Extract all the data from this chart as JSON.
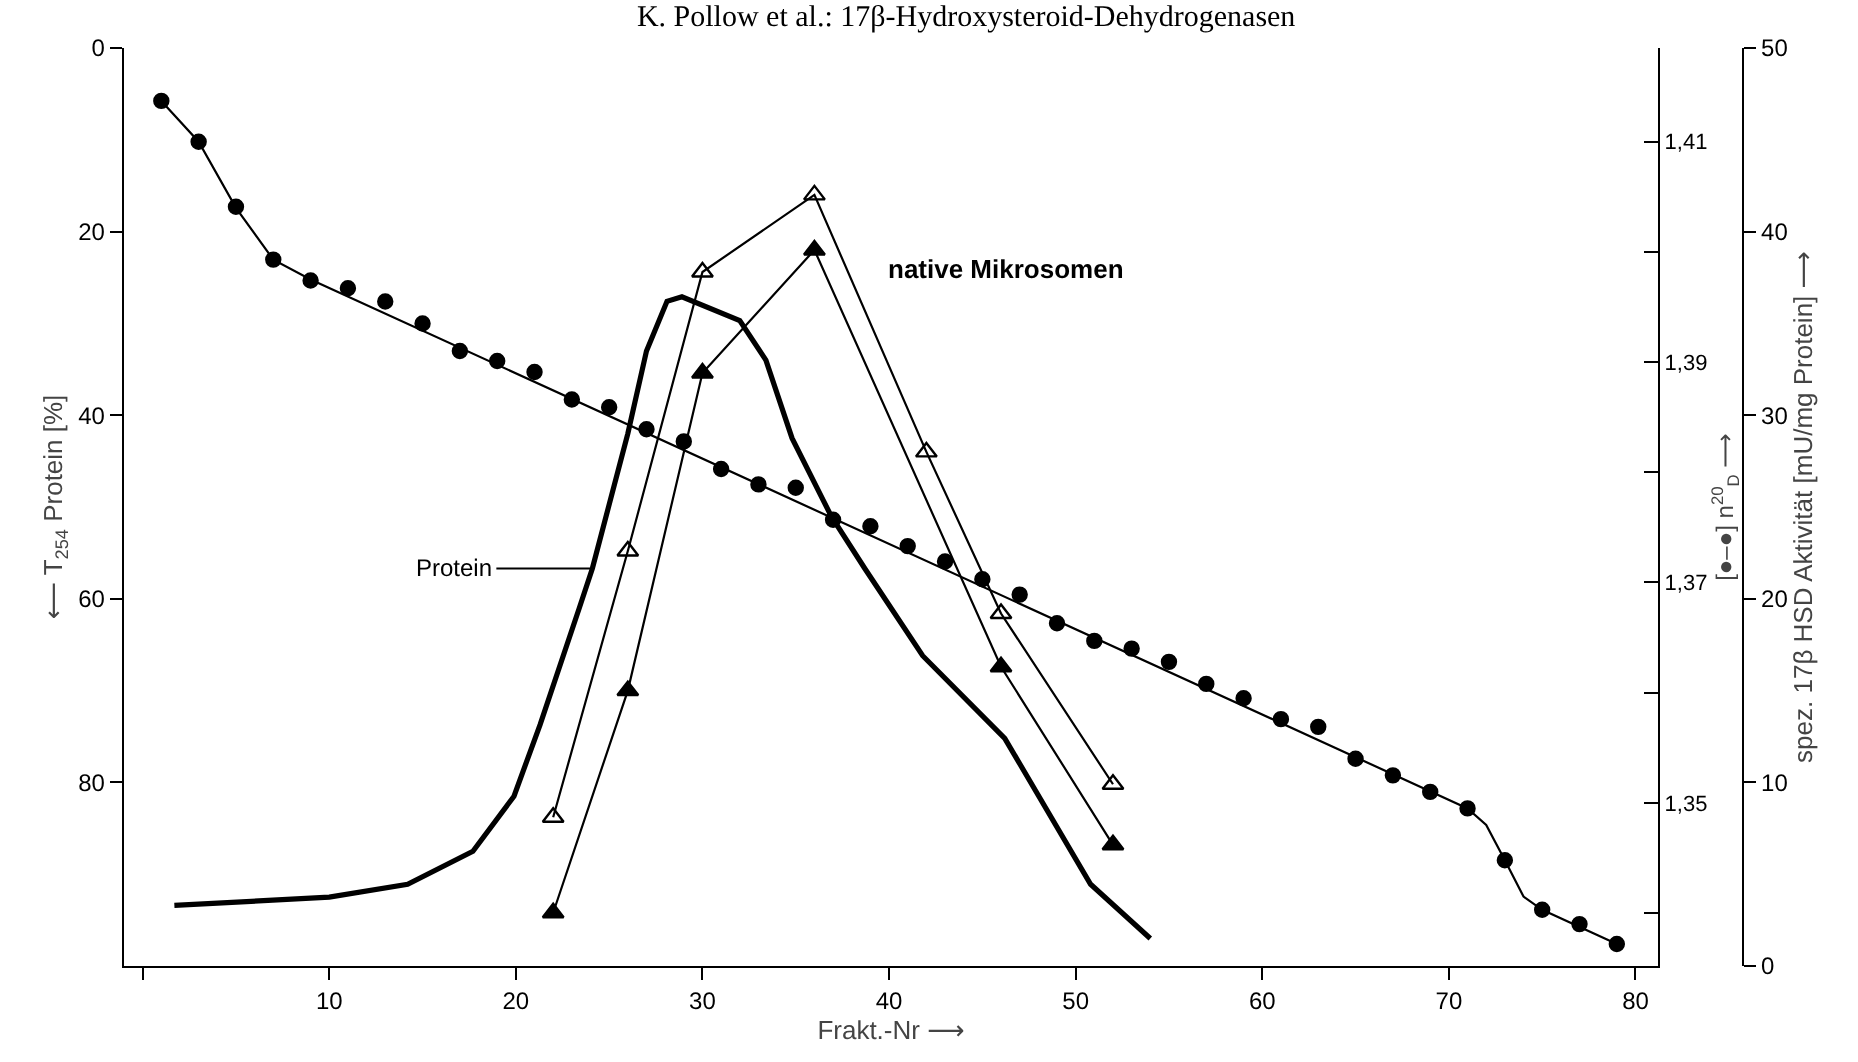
{
  "chart_data": {
    "type": "line",
    "title": "K. Pollow et al.: 17β-Hydroxysteroid-Dehydrogenasen",
    "xlabel": "Frakt.-Nr ⟶",
    "ylabel": "⟵ T$_{254}$ Protein [%]",
    "y2label": "[●–●] n$^{20}$$_{D}$ ⟶",
    "y3label": "spez. 17β HSD Aktivität [mU/mg Protein] ⟶",
    "annotations": [
      "native Mikrosomen"
    ],
    "xlim": [
      -1,
      81.2
    ],
    "xticks": [
      {
        "value": 0,
        "label": null
      },
      10,
      20,
      30,
      40,
      50,
      60,
      70,
      80
    ],
    "ylim": [
      100,
      0
    ],
    "yticks": [
      0,
      20,
      40,
      60,
      80
    ],
    "y2lim": [
      1.3352,
      1.4185
    ],
    "y2ticks": [
      {
        "value": 1.34,
        "label": null
      },
      {
        "value": 1.35,
        "label": "1,35"
      },
      {
        "value": 1.36,
        "label": null
      },
      {
        "value": 1.37,
        "label": "1,37"
      },
      {
        "value": 1.38,
        "label": null
      },
      {
        "value": 1.39,
        "label": "1,39"
      },
      {
        "value": 1.4,
        "label": null
      },
      {
        "value": 1.41,
        "label": "1,41"
      }
    ],
    "y3lim": [
      0,
      50
    ],
    "y3ticks": [
      0,
      10,
      20,
      30,
      40,
      50
    ],
    "grid": false,
    "legend": "left",
    "line_style": "solid",
    "series": [
      {
        "name": "Protein",
        "type": "line",
        "marker": "none",
        "color": "#000000",
        "x": [
          1.7,
          10,
          14.2,
          17.7,
          19.9,
          21.3,
          23.4,
          24.1,
          26,
          27,
          28.1,
          28.9,
          32,
          33.4,
          34.8,
          36.9,
          38.7,
          41.8,
          46.2,
          50.8,
          54
        ],
        "values": [
          93.4,
          92.5,
          91.1,
          87.5,
          81.5,
          73.7,
          61,
          56.7,
          42,
          33,
          27.6,
          27.1,
          29.7,
          34,
          42.5,
          51,
          56.7,
          66.2,
          75.2,
          91.1,
          97
        ]
      },
      {
        "type": "line",
        "marker": "triangle-open",
        "axis": "y3",
        "color": "#000000",
        "x": [
          22,
          26,
          30,
          36,
          42,
          46,
          52
        ],
        "values": [
          8.1,
          22.6,
          37.8,
          42,
          28,
          19.2,
          9.9
        ]
      },
      {
        "type": "line",
        "marker": "triangle",
        "axis": "y3",
        "color": "#000000",
        "x": [
          22,
          26,
          30,
          36,
          46,
          52
        ],
        "values": [
          2.9,
          15,
          32.3,
          39,
          16.3,
          6.6
        ]
      },
      {
        "type": "scatter",
        "marker": "circle",
        "axis": "y2",
        "color": "#000000",
        "x": [
          1,
          3,
          5,
          7,
          9,
          11,
          13,
          15,
          17,
          19,
          21,
          23,
          25,
          27,
          29,
          31,
          33,
          35,
          37,
          39,
          41,
          43,
          45,
          47,
          49,
          51,
          53,
          55,
          57,
          59,
          61,
          63,
          65,
          67,
          69,
          71,
          73,
          75,
          77,
          79
        ],
        "values": [
          1.4137,
          1.41,
          1.4041,
          1.3993,
          1.3974,
          1.3967,
          1.3955,
          1.3935,
          1.391,
          1.3901,
          1.3891,
          1.3866,
          1.3859,
          1.3839,
          1.3828,
          1.3803,
          1.3789,
          1.3786,
          1.3757,
          1.3751,
          1.3733,
          1.3719,
          1.3703,
          1.3689,
          1.3663,
          1.3647,
          1.364,
          1.3628,
          1.3608,
          1.3595,
          1.3576,
          1.3569,
          1.354,
          1.3525,
          1.351,
          1.3495,
          1.3448,
          1.3403,
          1.339,
          1.3372
        ]
      },
      {
        "type": "line",
        "marker": "none",
        "axis": "y2",
        "color": "#000000",
        "x": [
          1,
          3,
          5,
          7,
          9,
          71,
          72,
          73,
          74,
          75,
          79
        ],
        "values": [
          1.4137,
          1.41,
          1.404,
          1.3993,
          1.3975,
          1.3495,
          1.348,
          1.3448,
          1.3415,
          1.3403,
          1.3372
        ]
      }
    ]
  }
}
